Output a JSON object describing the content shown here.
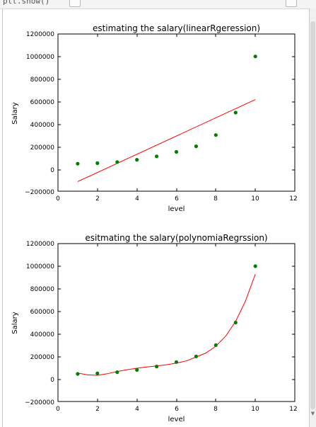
{
  "window": {
    "code_fragment": "plt.show()"
  },
  "charts": [
    {
      "title": "estimating the salary(linearRgeression)",
      "xlabel": "level",
      "ylabel": "Salary",
      "xticks": [
        "0",
        "2",
        "4",
        "6",
        "8",
        "10",
        "12"
      ],
      "yticks": [
        "1200000",
        "1000000",
        "800000",
        "600000",
        "400000",
        "200000",
        "0",
        "−200000"
      ]
    },
    {
      "title": "esitmating the salary(polynomiaRegrssion)",
      "xlabel": "level",
      "ylabel": "Salary",
      "xticks": [
        "0",
        "2",
        "4",
        "6",
        "8",
        "10",
        "12"
      ],
      "yticks": [
        "1200000",
        "1000000",
        "800000",
        "600000",
        "400000",
        "200000",
        "0",
        "−200000"
      ]
    }
  ],
  "colors": {
    "points": "#008000",
    "fit_line": "#ff0000"
  },
  "chart_data": [
    {
      "type": "scatter",
      "title": "estimating the salary(linearRgeression)",
      "xlabel": "level",
      "ylabel": "Salary",
      "xlim": [
        0,
        12
      ],
      "ylim": [
        -200000,
        1200000
      ],
      "series": [
        {
          "kind": "scatter",
          "x": [
            1,
            2,
            3,
            4,
            5,
            6,
            7,
            8,
            9,
            10
          ],
          "y": [
            45000,
            50000,
            60000,
            80000,
            110000,
            150000,
            200000,
            300000,
            500000,
            1000000
          ]
        },
        {
          "kind": "line",
          "x": [
            1,
            10
          ],
          "y": [
            -114000,
            616000
          ]
        }
      ]
    },
    {
      "type": "scatter",
      "title": "esitmating the salary(polynomiaRegrssion)",
      "xlabel": "level",
      "ylabel": "Salary",
      "xlim": [
        0,
        12
      ],
      "ylim": [
        -200000,
        1200000
      ],
      "series": [
        {
          "kind": "scatter",
          "x": [
            1,
            2,
            3,
            4,
            5,
            6,
            7,
            8,
            9,
            10
          ],
          "y": [
            45000,
            50000,
            60000,
            80000,
            110000,
            150000,
            200000,
            300000,
            500000,
            1000000
          ]
        },
        {
          "kind": "line",
          "x": [
            1,
            1.5,
            2,
            2.5,
            3,
            3.5,
            4,
            4.5,
            5,
            5.5,
            6,
            6.5,
            7,
            7.5,
            8,
            8.5,
            9,
            9.5,
            10
          ],
          "y": [
            53000,
            36000,
            32000,
            46000,
            66000,
            82000,
            95000,
            106000,
            115000,
            126000,
            140000,
            160000,
            195000,
            230000,
            290000,
            380000,
            510000,
            690000,
            930000
          ]
        }
      ]
    }
  ]
}
